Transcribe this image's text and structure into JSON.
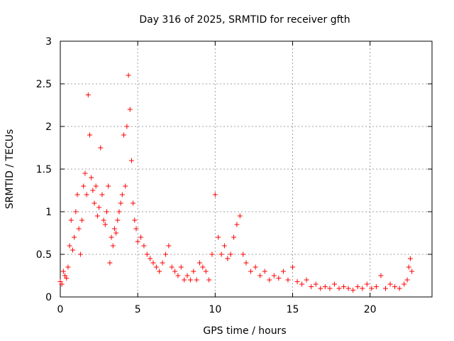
{
  "chart_data": {
    "type": "scatter",
    "title": "Day 316 of 2025, SRMTID for receiver gfth",
    "xlabel": "GPS time / hours",
    "ylabel": "SRMTID / TECUs",
    "xlim": [
      0,
      24
    ],
    "ylim": [
      0,
      3
    ],
    "xticks": [
      0,
      5,
      10,
      15,
      20
    ],
    "yticks": [
      0,
      0.5,
      1,
      1.5,
      2,
      2.5,
      3
    ],
    "ytick_labels": [
      "0",
      "0.5",
      "1",
      "1.5",
      "2",
      "2.5",
      "3"
    ],
    "grid": true,
    "marker": "+",
    "series": [
      {
        "name": "SRMTID",
        "color": "#ff0000",
        "x": [
          0.0,
          0.1,
          0.2,
          0.3,
          0.4,
          0.5,
          0.6,
          0.7,
          0.8,
          0.9,
          1.0,
          1.1,
          1.2,
          1.3,
          1.4,
          1.5,
          1.6,
          1.7,
          1.8,
          1.9,
          2.0,
          2.1,
          2.2,
          2.3,
          2.4,
          2.5,
          2.6,
          2.7,
          2.8,
          2.9,
          3.0,
          3.1,
          3.2,
          3.3,
          3.4,
          3.5,
          3.6,
          3.7,
          3.8,
          3.9,
          4.0,
          4.1,
          4.2,
          4.3,
          4.4,
          4.5,
          4.6,
          4.7,
          4.8,
          4.9,
          5.0,
          5.2,
          5.4,
          5.6,
          5.8,
          6.0,
          6.2,
          6.4,
          6.6,
          6.8,
          7.0,
          7.2,
          7.4,
          7.6,
          7.8,
          8.0,
          8.2,
          8.4,
          8.6,
          8.8,
          9.0,
          9.2,
          9.4,
          9.6,
          9.8,
          10.0,
          10.2,
          10.4,
          10.6,
          10.8,
          11.0,
          11.2,
          11.4,
          11.6,
          11.8,
          12.0,
          12.3,
          12.6,
          12.9,
          13.2,
          13.5,
          13.8,
          14.1,
          14.4,
          14.7,
          15.0,
          15.3,
          15.6,
          15.9,
          16.2,
          16.5,
          16.8,
          17.1,
          17.4,
          17.7,
          18.0,
          18.3,
          18.6,
          18.9,
          19.2,
          19.5,
          19.8,
          20.1,
          20.4,
          20.7,
          21.0,
          21.3,
          21.6,
          21.9,
          22.2,
          22.4,
          22.5,
          22.6,
          22.7
        ],
        "y": [
          0.18,
          0.15,
          0.3,
          0.25,
          0.22,
          0.35,
          0.6,
          0.9,
          0.55,
          0.7,
          1.0,
          1.2,
          0.8,
          0.5,
          0.9,
          1.3,
          1.45,
          1.2,
          2.37,
          1.9,
          1.4,
          1.25,
          1.1,
          1.3,
          0.95,
          1.05,
          1.75,
          1.2,
          0.9,
          0.85,
          1.0,
          1.3,
          0.4,
          0.7,
          0.6,
          0.8,
          0.75,
          0.9,
          1.0,
          1.1,
          1.2,
          1.9,
          1.3,
          2.0,
          2.6,
          2.2,
          1.6,
          1.1,
          0.9,
          0.8,
          0.65,
          0.7,
          0.6,
          0.5,
          0.45,
          0.4,
          0.35,
          0.3,
          0.4,
          0.5,
          0.6,
          0.35,
          0.3,
          0.25,
          0.35,
          0.2,
          0.25,
          0.2,
          0.3,
          0.2,
          0.4,
          0.35,
          0.3,
          0.2,
          0.5,
          1.2,
          0.7,
          0.5,
          0.6,
          0.45,
          0.5,
          0.7,
          0.85,
          0.95,
          0.5,
          0.4,
          0.3,
          0.35,
          0.25,
          0.3,
          0.2,
          0.25,
          0.22,
          0.3,
          0.2,
          0.35,
          0.18,
          0.15,
          0.2,
          0.12,
          0.15,
          0.1,
          0.12,
          0.1,
          0.15,
          0.1,
          0.12,
          0.1,
          0.08,
          0.12,
          0.1,
          0.15,
          0.1,
          0.12,
          0.25,
          0.1,
          0.15,
          0.12,
          0.1,
          0.15,
          0.2,
          0.35,
          0.45,
          0.3
        ]
      }
    ]
  }
}
